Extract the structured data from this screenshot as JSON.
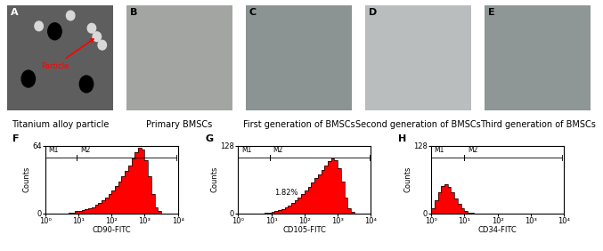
{
  "images": [
    {
      "label": "A",
      "caption": "Titanium alloy particle",
      "annotation": "Particle"
    },
    {
      "label": "B",
      "caption": "Primary BMSCs"
    },
    {
      "label": "C",
      "caption": "First generation of BMSCs"
    },
    {
      "label": "D",
      "caption": "Second generation of BMSCs"
    },
    {
      "label": "E",
      "caption": "Third generation of BMSCs"
    }
  ],
  "chart_data": [
    {
      "type": "histogram",
      "label": "F",
      "xlabel": "CD90-FITC",
      "ylabel": "Counts",
      "log": "x",
      "xlim": [
        1,
        10000
      ],
      "xticks": [
        {
          "value": 1,
          "label": "10⁰"
        },
        {
          "value": 10,
          "label": "10¹"
        },
        {
          "value": 100,
          "label": "10²"
        },
        {
          "value": 1000,
          "label": "10³"
        },
        {
          "value": 10000,
          "label": "10⁴"
        }
      ],
      "ylim": [
        0,
        64
      ],
      "yticks": [
        0,
        64
      ],
      "color": "#ff0000",
      "bins": [
        1,
        1.259,
        1.585,
        1.995,
        2.512,
        3.162,
        3.981,
        5.012,
        6.31,
        7.943,
        10,
        12.59,
        15.85,
        19.95,
        25.12,
        31.62,
        39.81,
        50.12,
        63.1,
        79.43,
        100,
        125.9,
        158.5,
        199.5,
        251.2,
        316.2,
        398.1,
        501.2,
        631,
        794.3,
        1000,
        1259,
        1585,
        1995,
        2512,
        3162,
        3981,
        5012,
        6310,
        7943,
        10000
      ],
      "counts": [
        0,
        0,
        0,
        0,
        0,
        0,
        0,
        1,
        1,
        2,
        2,
        3,
        4,
        5,
        6,
        8,
        10,
        12,
        15,
        18,
        22,
        26,
        30,
        35,
        40,
        45,
        52,
        58,
        62,
        60,
        50,
        35,
        18,
        6,
        2,
        0,
        0,
        0,
        0,
        0
      ],
      "gates": [
        {
          "name": "M1",
          "range": [
            1,
            9
          ]
        },
        {
          "name": "M2",
          "range": [
            9,
            9000
          ]
        }
      ]
    },
    {
      "type": "histogram",
      "label": "G",
      "xlabel": "CD105-FITC",
      "ylabel": "Counts",
      "log": "x",
      "xlim": [
        1,
        10000
      ],
      "xticks": [
        {
          "value": 1,
          "label": "10⁰"
        },
        {
          "value": 10,
          "label": "10¹"
        },
        {
          "value": 100,
          "label": "10²"
        },
        {
          "value": 1000,
          "label": "10³"
        },
        {
          "value": 10000,
          "label": "10⁴"
        }
      ],
      "ylim": [
        0,
        128
      ],
      "yticks": [
        0,
        128
      ],
      "color": "#ff0000",
      "bins": [
        1,
        1.259,
        1.585,
        1.995,
        2.512,
        3.162,
        3.981,
        5.012,
        6.31,
        7.943,
        10,
        12.59,
        15.85,
        19.95,
        25.12,
        31.62,
        39.81,
        50.12,
        63.1,
        79.43,
        100,
        125.9,
        158.5,
        199.5,
        251.2,
        316.2,
        398.1,
        501.2,
        631,
        794.3,
        1000,
        1259,
        1585,
        1995,
        2512,
        3162,
        3981,
        5012,
        6310,
        7943,
        10000
      ],
      "counts": [
        0,
        0,
        0,
        0,
        0,
        0,
        0,
        0,
        1,
        2,
        3,
        4,
        6,
        8,
        11,
        15,
        19,
        24,
        30,
        36,
        43,
        50,
        58,
        66,
        74,
        82,
        90,
        98,
        104,
        100,
        85,
        60,
        30,
        10,
        3,
        0,
        0,
        0,
        0,
        0
      ],
      "annotation": "1.82%",
      "gates": [
        {
          "name": "M1",
          "range": [
            1,
            9
          ]
        },
        {
          "name": "M2",
          "range": [
            9,
            9000
          ]
        }
      ]
    },
    {
      "type": "histogram",
      "label": "H",
      "xlabel": "CD34-FITC",
      "ylabel": "Counts",
      "log": "x",
      "xlim": [
        1,
        10000
      ],
      "xticks": [
        {
          "value": 1,
          "label": "10⁰"
        },
        {
          "value": 10,
          "label": "10¹"
        },
        {
          "value": 100,
          "label": "10²"
        },
        {
          "value": 1000,
          "label": "10³"
        },
        {
          "value": 10000,
          "label": "10⁴"
        }
      ],
      "ylim": [
        0,
        128
      ],
      "yticks": [
        0,
        128
      ],
      "color": "#ff0000",
      "bins": [
        1,
        1.259,
        1.585,
        1.995,
        2.512,
        3.162,
        3.981,
        5.012,
        6.31,
        7.943,
        10,
        12.59,
        15.85,
        19.95,
        25.12,
        31.62,
        39.81,
        50.12,
        63.1,
        79.43,
        100,
        125.9,
        158.5,
        199.5,
        251.2,
        316.2,
        398.1,
        501.2,
        631,
        794.3,
        1000,
        1259,
        1585,
        1995,
        2512,
        3162,
        3981,
        5012,
        6310,
        7943,
        10000
      ],
      "counts": [
        10,
        25,
        40,
        52,
        55,
        50,
        40,
        28,
        18,
        10,
        5,
        2,
        1,
        0,
        0,
        0,
        0,
        0,
        0,
        0,
        0,
        0,
        0,
        0,
        0,
        0,
        0,
        0,
        0,
        0,
        0,
        0,
        0,
        0,
        0,
        0,
        0,
        0,
        0,
        0
      ],
      "gates": [
        {
          "name": "M1",
          "range": [
            1,
            10
          ]
        },
        {
          "name": "M2",
          "range": [
            10,
            9000
          ]
        }
      ]
    }
  ]
}
